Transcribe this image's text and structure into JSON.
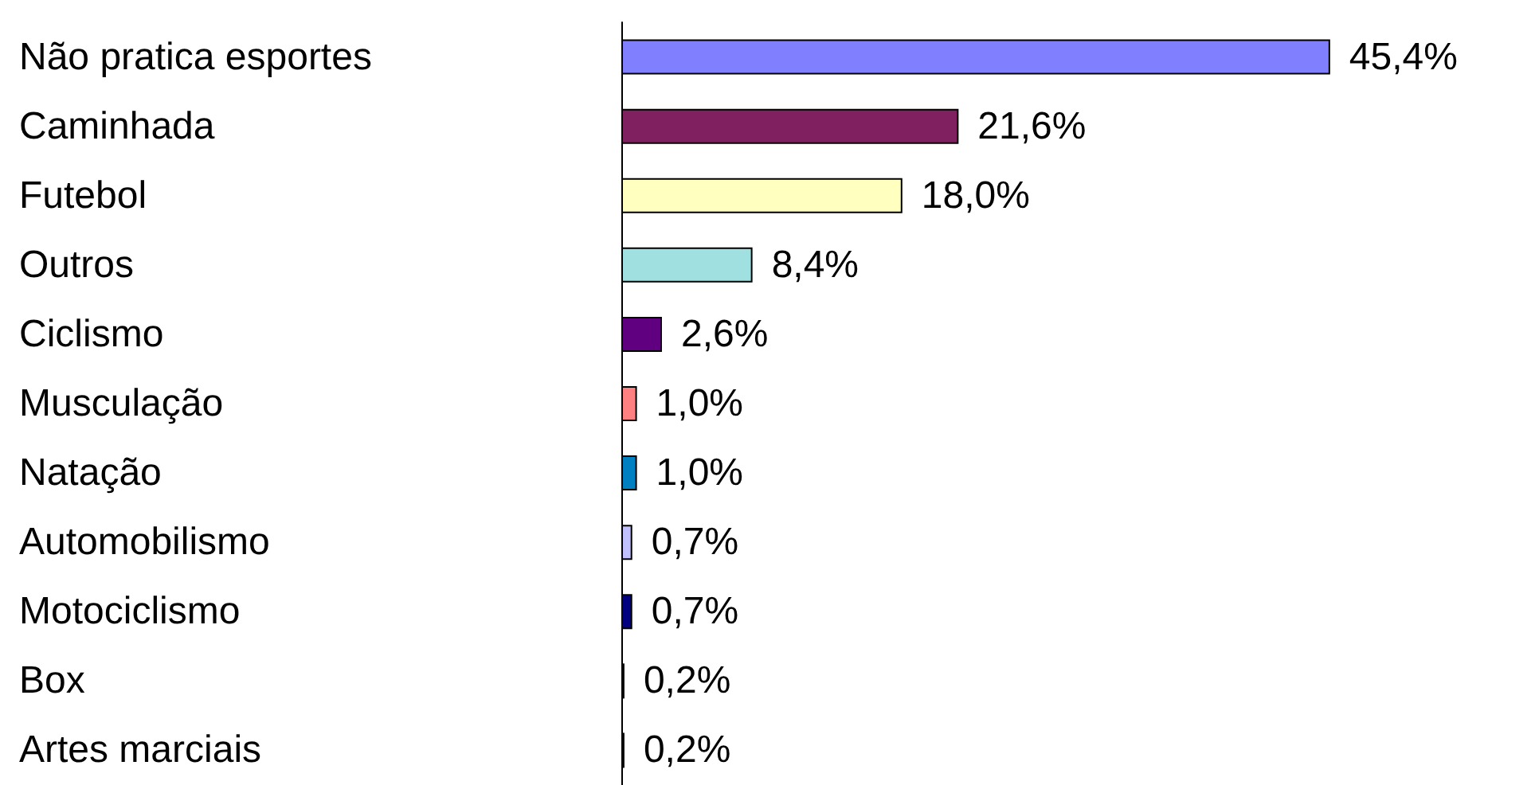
{
  "chart_data": {
    "type": "bar",
    "orientation": "horizontal",
    "categories": [
      "Não pratica esportes",
      "Caminhada",
      "Futebol",
      "Outros",
      "Ciclismo",
      "Musculação",
      "Natação",
      "Automobilismo",
      "Motociclismo",
      "Box",
      "Artes marciais"
    ],
    "values": [
      45.4,
      21.6,
      18.0,
      8.4,
      2.6,
      1.0,
      1.0,
      0.7,
      0.7,
      0.2,
      0.2
    ],
    "colors": [
      "#8080ff",
      "#802060",
      "#ffffc0",
      "#a0e0e0",
      "#600080",
      "#ff8080",
      "#0080c0",
      "#c0c0ff",
      "#000080",
      "#ff00ff",
      "#cccc00"
    ],
    "value_labels": [
      "45,4%",
      "21,6%",
      "18,0%",
      "8,4%",
      "2,6%",
      "1,0%",
      "1,0%",
      "0,7%",
      "0,7%",
      "0,2%",
      "0,2%"
    ]
  }
}
